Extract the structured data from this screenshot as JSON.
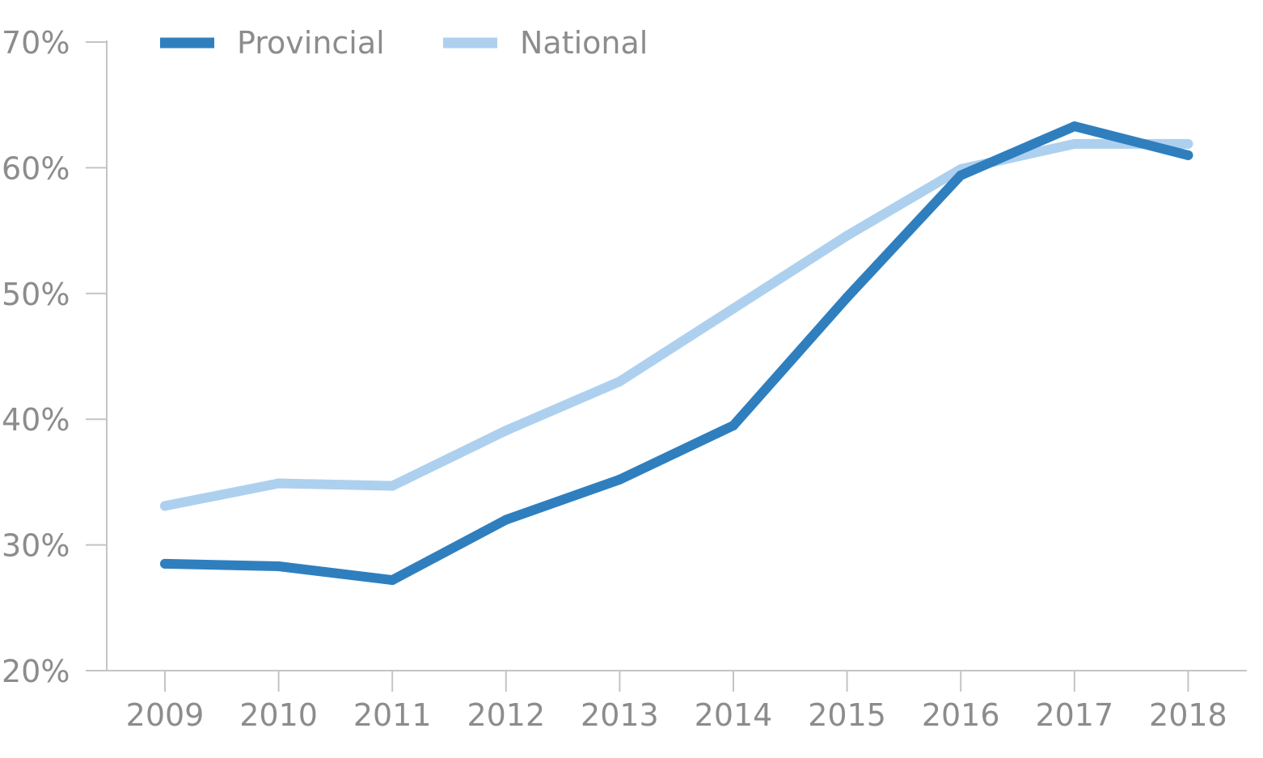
{
  "chart_data": {
    "type": "line",
    "x": [
      "2009",
      "2010",
      "2011",
      "2012",
      "2013",
      "2014",
      "2015",
      "2016",
      "2017",
      "2018"
    ],
    "ylim": [
      20,
      70
    ],
    "y_ticks": [
      "20%",
      "30%",
      "40%",
      "50%",
      "60%",
      "70%"
    ],
    "y_tick_values": [
      20,
      30,
      40,
      50,
      60,
      70
    ],
    "series": [
      {
        "name": "Provincial",
        "color": "#2f7fbf",
        "values": [
          28.5,
          28.3,
          27.2,
          32.0,
          35.2,
          39.5,
          49.7,
          59.4,
          63.3,
          61.0
        ]
      },
      {
        "name": "National",
        "color": "#add0ef",
        "values": [
          33.1,
          34.9,
          34.7,
          39.1,
          43.0,
          48.8,
          54.6,
          59.9,
          61.9,
          61.9
        ]
      }
    ],
    "legend_position": "top-left",
    "grid": false,
    "title": "",
    "xlabel": "",
    "ylabel": ""
  }
}
